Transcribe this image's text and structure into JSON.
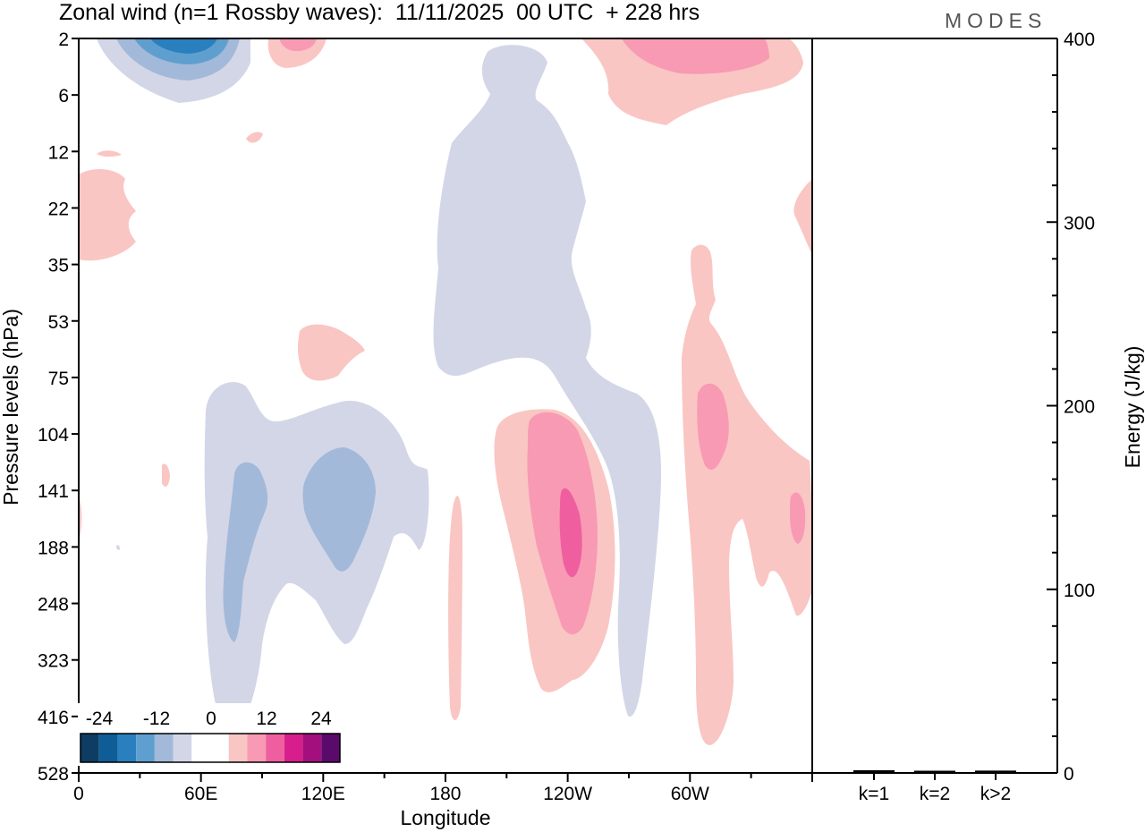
{
  "title": "Zonal wind (n=1 Rossby waves):  11/11/2025  00 UTC  + 228 hrs",
  "logo": "MODES",
  "colors": {
    "neg_shades": [
      "#0d3d63",
      "#0f5d96",
      "#2a7fbf",
      "#5f9fcf",
      "#a2b9da",
      "#d3d6e7"
    ],
    "zero": "#ffffff",
    "pos_shades": [
      "#f9c6c3",
      "#f89ab3",
      "#ef5fa0",
      "#d61f8c",
      "#a30f7d",
      "#5a0a6b"
    ]
  },
  "chart_data": [
    {
      "type": "heatmap",
      "title": "Zonal wind (n=1 Rossby waves):  11/11/2025  00 UTC  + 228 hrs",
      "xlabel": "Longitude",
      "ylabel": "Pressure levels (hPa)",
      "x_ticks": [
        "0",
        "60E",
        "120E",
        "180",
        "120W",
        "60W"
      ],
      "y_ticks": [
        "2",
        "6",
        "12",
        "22",
        "35",
        "53",
        "75",
        "104",
        "141",
        "188",
        "248",
        "323",
        "416",
        "528"
      ],
      "colorbar_labels": [
        "-24",
        "-12",
        "0",
        "12",
        "24"
      ],
      "features": [
        {
          "sign": "negative",
          "max_abs": 16,
          "lon": "30E",
          "level_hPa": 2,
          "desc": "upper-stratosphere easterly anomaly"
        },
        {
          "sign": "negative",
          "max_abs": 8,
          "lon": "170W",
          "level_range_hPa": [
            6,
            75
          ]
        },
        {
          "sign": "negative",
          "max_abs": 8,
          "lon": "75E-110E",
          "level_range_hPa": [
            104,
            416
          ]
        },
        {
          "sign": "positive",
          "max_abs": 12,
          "lon": "125W",
          "level_range_hPa": [
            104,
            323
          ]
        },
        {
          "sign": "positive",
          "max_abs": 8,
          "lon": "50W",
          "level_range_hPa": [
            35,
            416
          ]
        },
        {
          "sign": "positive",
          "max_abs": 8,
          "lon": "60W",
          "level_hPa": 2
        }
      ]
    },
    {
      "type": "bar",
      "categories": [
        "k=1",
        "k=2",
        "k>2"
      ],
      "values": [
        1,
        0.3,
        0.8
      ],
      "ylabel": "Energy (J/kg)",
      "ylim": [
        0,
        400
      ],
      "y_ticks": [
        "0",
        "100",
        "200",
        "300",
        "400"
      ]
    }
  ]
}
